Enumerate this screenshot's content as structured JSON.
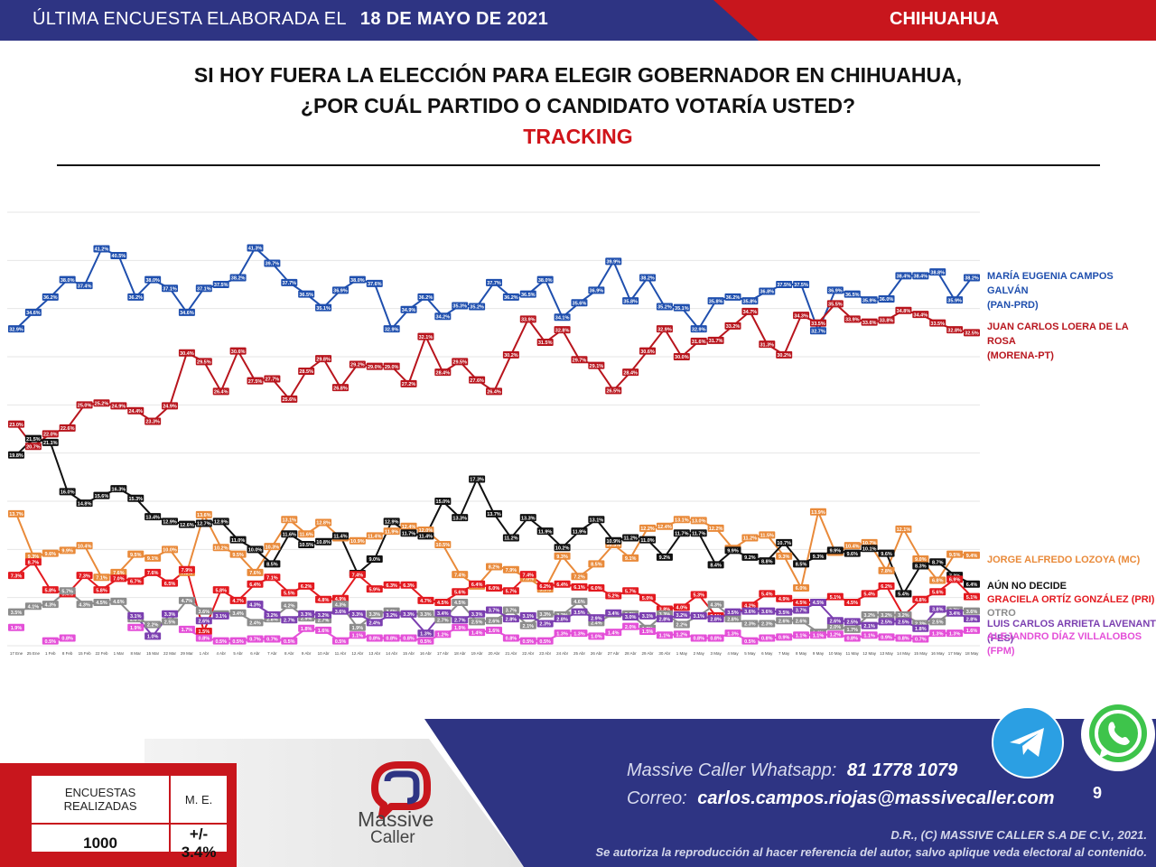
{
  "header": {
    "left_text": "ÚLTIMA ENCUESTA ELABORADA EL",
    "date": "18 DE MAYO DE 2021",
    "region": "CHIHUAHUA"
  },
  "title": {
    "line1": "SI HOY FUERA LA ELECCIÓN PARA ELEGIR GOBERNADOR EN CHIHUAHUA,",
    "line2": "¿POR CUÁL PARTIDO O CANDIDATO VOTARÍA USTED?",
    "line3": "TRACKING"
  },
  "legend": {
    "maru_1": "MARÍA EUGENIA CAMPOS GALVÁN",
    "maru_2": "(PAN-PRD)",
    "loera_1": "JUAN CARLOS LOERA  DE LA ROSA",
    "loera_2": "(MORENA-PT)",
    "lozoya": "JORGE ALFREDO LOZOYA (MC)",
    "nodecide": "AÚN NO DECIDE",
    "ortiz": "GRACIELA ORTÍZ GONZÁLEZ (PRI)",
    "otro": "OTRO",
    "arrieta": "LUIS CARLOS ARRIETA LAVENANT (PES)",
    "villalobos": "ALEJANDRO DÍAZ VILLALOBOS (FPM)"
  },
  "colors": {
    "navy": "#2e3483",
    "red": "#c8161d",
    "pan": "#1f4fae",
    "morena": "#b8151d",
    "mc": "#e98a3a",
    "nodecide": "#111111",
    "pri": "#e3191f",
    "otro": "#8c8c8c",
    "pes": "#7b3fb0",
    "fpm": "#e44fd8",
    "green": "#21a047"
  },
  "chart_data": {
    "type": "line",
    "ylim": [
      0,
      45
    ],
    "grid": true,
    "legend_position": "right",
    "categories": [
      "17 Ene",
      "25 Ene",
      "1 Feb",
      "8 Feb",
      "15 Feb",
      "22 Feb",
      "1 Mar",
      "8 Mar",
      "15 Mar",
      "22 Mar",
      "29 Mar",
      "1 Abr",
      "4 Abr",
      "5 Abr",
      "6 Abr",
      "7 Abr",
      "8 Abr",
      "9 Abr",
      "10 Abr",
      "11 Abr",
      "12 Abr",
      "13 Abr",
      "14 Abr",
      "15 Abr",
      "16 Abr",
      "17 Abr",
      "18 Abr",
      "19 Abr",
      "20 Abr",
      "21 Abr",
      "22 Abr",
      "23 Abr",
      "24 Abr",
      "25 Abr",
      "26 Abr",
      "27 Abr",
      "28 Abr",
      "29 Abr",
      "30 Abr",
      "1 May",
      "2 May",
      "3 May",
      "4 May",
      "5 May",
      "6 May",
      "7 May",
      "8 May",
      "9 May",
      "10 May",
      "11 May",
      "12 May",
      "13 May",
      "14 May",
      "15 May",
      "16 May",
      "17 May",
      "18 May"
    ],
    "series": [
      {
        "name": "MARÍA EUGENIA CAMPOS GALVÁN (PAN-PRD)",
        "color": "#1f4fae",
        "values": [
          32.9,
          34.6,
          36.2,
          38.0,
          37.4,
          41.2,
          40.5,
          36.2,
          38.0,
          37.1,
          34.6,
          37.1,
          37.5,
          38.2,
          41.3,
          39.7,
          37.7,
          36.5,
          35.1,
          36.9,
          38.0,
          37.6,
          32.9,
          34.9,
          36.2,
          34.2,
          35.3,
          35.2,
          37.7,
          36.2,
          36.5,
          38.0,
          34.1,
          35.6,
          36.9,
          39.9,
          35.8,
          38.2,
          35.2,
          35.1,
          32.9,
          35.8,
          36.2,
          35.8,
          36.8,
          37.5,
          37.5,
          32.7,
          36.9,
          36.5,
          35.9,
          36.0,
          38.4,
          38.4,
          38.8,
          35.9,
          38.2
        ]
      },
      {
        "name": "JUAN CARLOS LOERA  DE LA ROSA (MORENA-PT)",
        "color": "#b8151d",
        "values": [
          23.0,
          20.7,
          22.0,
          22.6,
          25.0,
          25.2,
          24.9,
          24.4,
          23.3,
          24.9,
          30.4,
          29.5,
          26.4,
          30.6,
          27.5,
          27.7,
          25.6,
          28.5,
          29.8,
          26.8,
          29.2,
          29.0,
          29.0,
          27.2,
          32.1,
          28.4,
          29.5,
          27.6,
          26.4,
          30.2,
          33.9,
          31.5,
          32.8,
          29.7,
          29.1,
          26.5,
          28.4,
          30.6,
          32.9,
          30.0,
          31.6,
          31.7,
          33.2,
          34.7,
          31.3,
          30.2,
          34.3,
          33.5,
          35.5,
          33.9,
          33.6,
          33.8,
          34.8,
          34.4,
          33.5,
          32.8,
          32.5
        ]
      },
      {
        "name": "JORGE ALFREDO LOZOYA (MC)",
        "color": "#e98a3a",
        "values": [
          13.7,
          9.3,
          9.6,
          9.9,
          10.4,
          7.1,
          7.6,
          9.5,
          9.1,
          10.0,
          7.6,
          13.6,
          10.2,
          9.5,
          7.6,
          10.3,
          13.1,
          11.6,
          12.8,
          11.2,
          10.9,
          11.4,
          11.9,
          12.4,
          12.0,
          10.5,
          7.4,
          6.2,
          8.2,
          7.9,
          7.0,
          5.9,
          9.3,
          7.2,
          8.5,
          10.5,
          9.1,
          12.2,
          12.4,
          13.1,
          13.0,
          12.2,
          10.1,
          11.2,
          11.5,
          9.3,
          6.0,
          13.9,
          9.7,
          10.4,
          10.7,
          7.8,
          12.1,
          9.0,
          6.8,
          9.5,
          9.4
        ]
      },
      {
        "name": "AÚN NO DECIDE",
        "color": "#111111",
        "values": [
          19.8,
          21.5,
          21.1,
          16.0,
          14.8,
          15.6,
          16.3,
          15.3,
          13.4,
          12.9,
          12.6,
          12.7,
          12.9,
          11.0,
          10.0,
          8.5,
          11.6,
          10.5,
          10.8,
          11.4,
          7.5,
          9.0,
          12.9,
          11.7,
          11.4,
          15.0,
          13.3,
          17.3,
          13.7,
          11.2,
          13.3,
          11.9,
          10.2,
          11.9,
          13.1,
          10.9,
          11.2,
          11.0,
          9.2,
          11.7,
          11.7,
          8.4,
          9.9,
          9.2,
          8.8,
          10.7,
          8.5,
          9.3,
          9.9,
          9.6,
          10.1,
          9.6,
          5.4,
          8.3,
          8.7,
          7.3,
          6.4
        ]
      },
      {
        "name": "GRACIELA ORTÍZ GONZÁLEZ (PRI)",
        "color": "#e3191f",
        "values": [
          7.3,
          8.7,
          5.8,
          5.4,
          7.3,
          5.8,
          7.0,
          6.7,
          7.6,
          6.5,
          7.9,
          1.5,
          5.8,
          4.7,
          6.4,
          7.1,
          5.5,
          6.2,
          4.8,
          4.9,
          7.4,
          5.9,
          6.3,
          6.3,
          4.7,
          4.5,
          5.6,
          6.4,
          6.0,
          5.7,
          7.4,
          6.2,
          6.4,
          6.1,
          6.0,
          5.2,
          5.7,
          5.0,
          3.8,
          4.0,
          5.3,
          3.1,
          3.1,
          4.2,
          5.4,
          4.9,
          4.5,
          4.5,
          5.1,
          4.5,
          5.4,
          6.2,
          3.1,
          4.8,
          5.6,
          6.9,
          5.1
        ]
      },
      {
        "name": "OTRO",
        "color": "#8c8c8c",
        "values": [
          3.5,
          4.1,
          4.3,
          5.7,
          4.3,
          4.5,
          4.6,
          2.8,
          2.2,
          2.5,
          4.7,
          3.6,
          3.3,
          3.4,
          2.4,
          2.8,
          4.2,
          2.9,
          2.7,
          4.3,
          1.9,
          3.3,
          3.6,
          3.3,
          3.3,
          2.7,
          4.5,
          2.5,
          2.6,
          3.7,
          2.1,
          3.3,
          3.2,
          4.6,
          2.4,
          3.3,
          3.3,
          1.8,
          3.3,
          2.2,
          3.1,
          4.3,
          2.8,
          2.3,
          2.3,
          2.6,
          2.6,
          1.4,
          2.0,
          1.7,
          3.2,
          3.2,
          3.2,
          2.3,
          2.5,
          3.7,
          3.6
        ]
      },
      {
        "name": "LUIS CARLOS ARRIETA LAVENANT (PES)",
        "color": "#7b3fb0",
        "values": [
          null,
          null,
          null,
          null,
          null,
          null,
          null,
          3.1,
          1.0,
          3.3,
          null,
          2.6,
          3.1,
          null,
          4.3,
          3.2,
          2.7,
          3.3,
          3.2,
          3.6,
          3.3,
          2.4,
          3.2,
          3.3,
          1.3,
          3.4,
          2.7,
          3.3,
          3.7,
          2.8,
          3.1,
          2.3,
          2.8,
          3.5,
          2.9,
          3.4,
          3.0,
          3.1,
          2.8,
          3.2,
          3.1,
          2.8,
          3.5,
          3.6,
          3.6,
          3.5,
          3.7,
          4.5,
          2.6,
          2.5,
          2.1,
          2.5,
          2.5,
          1.8,
          3.8,
          3.4,
          2.8
        ]
      },
      {
        "name": "ALEJANDRO DÍAZ VILLALOBOS (FPM)",
        "color": "#e44fd8",
        "values": [
          1.9,
          null,
          0.5,
          0.8,
          null,
          null,
          null,
          1.9,
          null,
          null,
          1.7,
          0.8,
          0.5,
          0.5,
          0.7,
          0.7,
          0.5,
          1.8,
          1.6,
          0.5,
          1.1,
          0.8,
          0.8,
          0.8,
          0.5,
          1.2,
          1.9,
          1.4,
          1.6,
          0.8,
          0.5,
          0.5,
          1.3,
          1.3,
          1.0,
          1.4,
          2.0,
          1.5,
          1.1,
          1.2,
          0.8,
          0.8,
          1.3,
          0.5,
          0.8,
          0.9,
          1.1,
          1.1,
          1.2,
          0.8,
          1.1,
          0.9,
          0.8,
          0.7,
          1.3,
          1.3,
          1.6
        ]
      }
    ]
  },
  "stats": {
    "col1": "ENCUESTAS REALIZADAS",
    "col2": "M. E.",
    "val1": "1000",
    "val2": "+/- 3.4%"
  },
  "brand": {
    "name1": "Massive",
    "name2": "Caller"
  },
  "contact": {
    "wa_label": "Massive Caller Whatsapp:",
    "wa_number": "81 1778 1079",
    "mail_label": "Correo:",
    "mail": "carlos.campos.riojas@massivecaller.com"
  },
  "footer": {
    "copyright": "D.R., (C) MASSIVE CALLER S.A DE C.V., 2021.",
    "note": "Se autoriza la reproducción al hacer referencia del autor, salvo aplique veda electoral al contenido.",
    "page": "9"
  }
}
